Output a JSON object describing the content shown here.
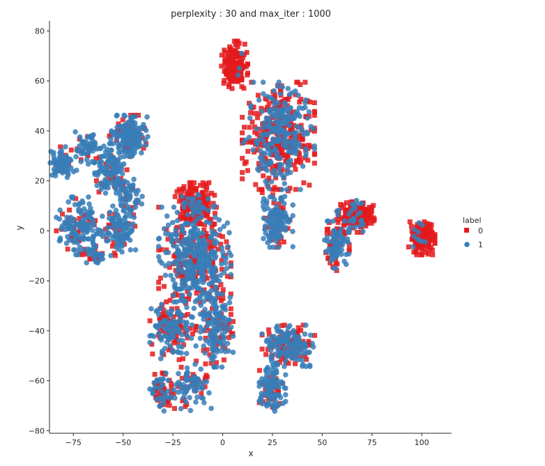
{
  "chart_data": {
    "type": "scatter",
    "title": "perplexity : 30 and max_iter : 1000",
    "xlabel": "x",
    "ylabel": "y",
    "xlim": [
      -87,
      115
    ],
    "ylim": [
      -81,
      84
    ],
    "x_ticks": [
      -75,
      -50,
      -25,
      0,
      25,
      50,
      75,
      100
    ],
    "y_ticks": [
      -80,
      -60,
      -40,
      -20,
      0,
      20,
      40,
      60,
      80
    ],
    "grid": false,
    "legend": {
      "title": "label",
      "placement": "right",
      "entries": [
        {
          "label": "0",
          "color": "#e41a1c",
          "marker": "square"
        },
        {
          "label": "1",
          "color": "#377eb8",
          "marker": "circle"
        }
      ]
    },
    "clusters": [
      {
        "cx": 6,
        "cy": 66,
        "sx": 4,
        "sy": 6,
        "n": 170,
        "p0": 0.97
      },
      {
        "cx": 28,
        "cy": 38,
        "sx": 11,
        "sy": 13,
        "n": 520,
        "p0": 0.55
      },
      {
        "cx": 27,
        "cy": 5,
        "sx": 5,
        "sy": 7,
        "n": 150,
        "p0": 0.3
      },
      {
        "cx": 100,
        "cy": -3,
        "sx": 4,
        "sy": 4,
        "n": 160,
        "p0": 0.96
      },
      {
        "cx": 67,
        "cy": 6,
        "sx": 6,
        "sy": 4,
        "n": 160,
        "p0": 0.85
      },
      {
        "cx": 57,
        "cy": -6,
        "sx": 4,
        "sy": 6,
        "n": 110,
        "p0": 0.4
      },
      {
        "cx": -14,
        "cy": 11,
        "sx": 6,
        "sy": 5,
        "n": 200,
        "p0": 0.85
      },
      {
        "cx": -14,
        "cy": -12,
        "sx": 11,
        "sy": 13,
        "n": 520,
        "p0": 0.35
      },
      {
        "cx": -25,
        "cy": -40,
        "sx": 7,
        "sy": 7,
        "n": 180,
        "p0": 0.4
      },
      {
        "cx": -3,
        "cy": -38,
        "sx": 5,
        "sy": 10,
        "n": 160,
        "p0": 0.3
      },
      {
        "cx": -30,
        "cy": -64,
        "sx": 4,
        "sy": 5,
        "n": 80,
        "p0": 0.6
      },
      {
        "cx": -14,
        "cy": -62,
        "sx": 5,
        "sy": 6,
        "n": 90,
        "p0": 0.3
      },
      {
        "cx": -47,
        "cy": 38,
        "sx": 6,
        "sy": 5,
        "n": 180,
        "p0": 0.25
      },
      {
        "cx": -56,
        "cy": 25,
        "sx": 5,
        "sy": 6,
        "n": 140,
        "p0": 0.2
      },
      {
        "cx": -80,
        "cy": 27,
        "sx": 4,
        "sy": 4,
        "n": 90,
        "p0": 0.2
      },
      {
        "cx": -68,
        "cy": 33,
        "sx": 4,
        "sy": 4,
        "n": 60,
        "p0": 0.25
      },
      {
        "cx": -47,
        "cy": 14,
        "sx": 4,
        "sy": 4,
        "n": 60,
        "p0": 0.3
      },
      {
        "cx": -72,
        "cy": 2,
        "sx": 7,
        "sy": 7,
        "n": 170,
        "p0": 0.2
      },
      {
        "cx": -52,
        "cy": 0,
        "sx": 5,
        "sy": 6,
        "n": 120,
        "p0": 0.2
      },
      {
        "cx": -64,
        "cy": -10,
        "sx": 3,
        "sy": 3,
        "n": 40,
        "p0": 0.5
      },
      {
        "cx": 33,
        "cy": -46,
        "sx": 8,
        "sy": 5,
        "n": 210,
        "p0": 0.35
      },
      {
        "cx": 25,
        "cy": -63,
        "sx": 4,
        "sy": 6,
        "n": 130,
        "p0": 0.2
      }
    ]
  }
}
